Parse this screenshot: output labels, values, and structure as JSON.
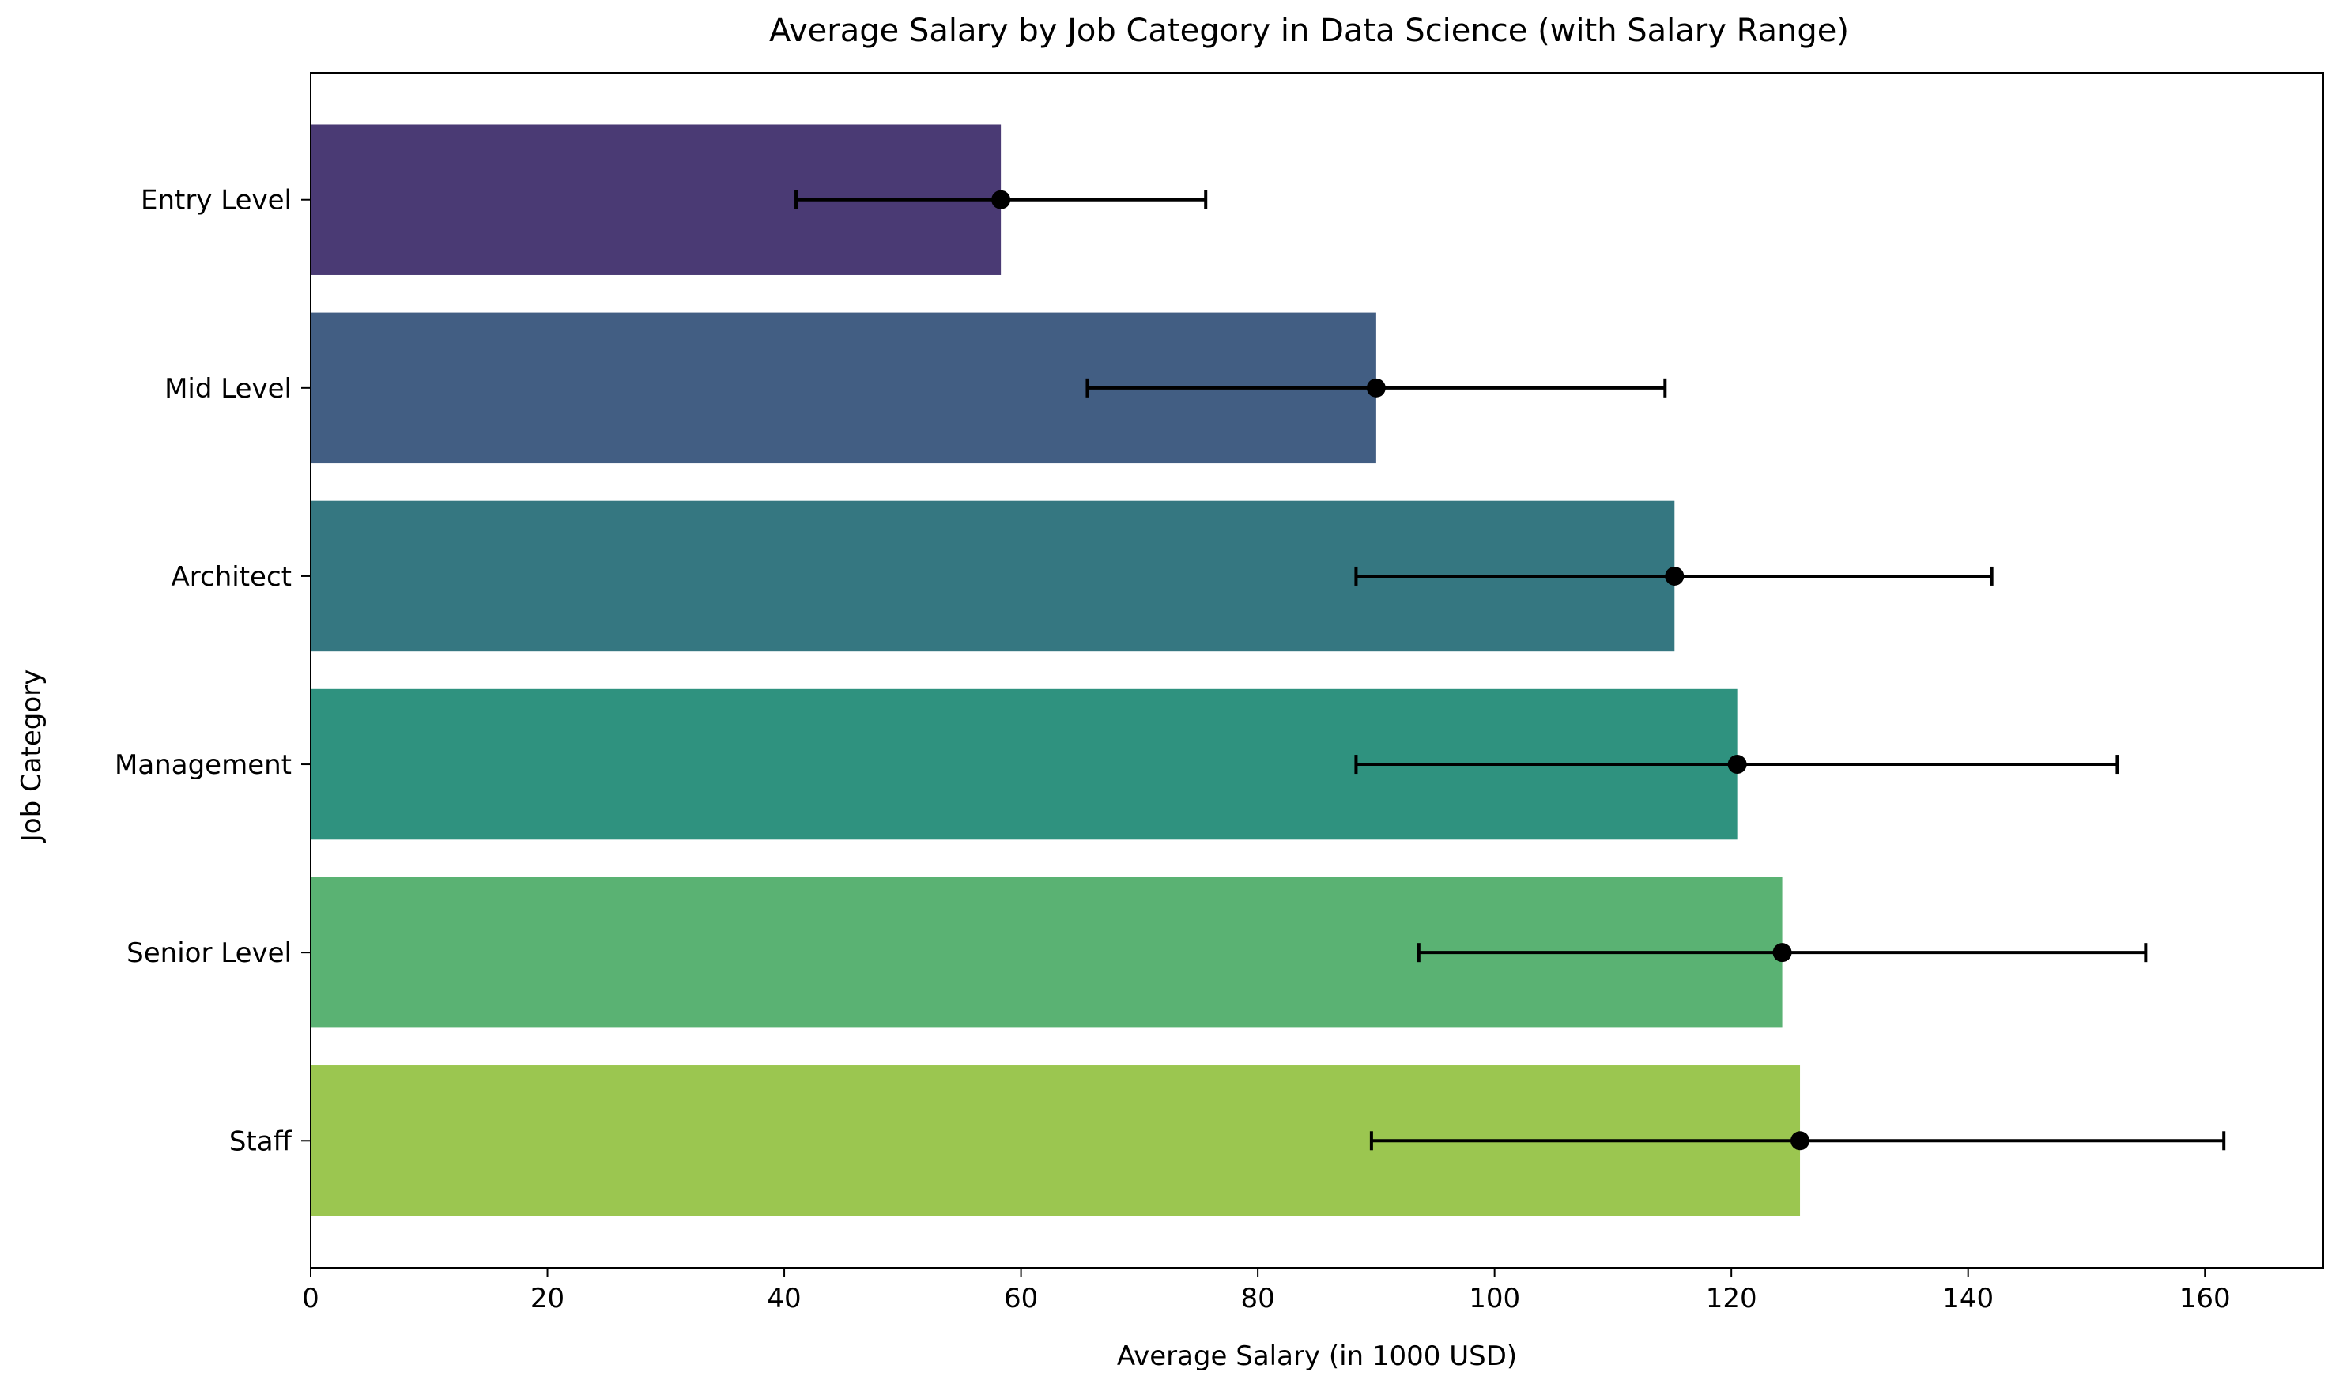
{
  "chart_data": {
    "type": "bar",
    "orientation": "horizontal",
    "title": "Average Salary by Job Category in Data Science (with Salary Range)",
    "xlabel": "Average Salary (in 1000 USD)",
    "ylabel": "Job Category",
    "xlim": [
      0,
      170
    ],
    "x_ticks": [
      0,
      20,
      40,
      60,
      80,
      100,
      120,
      140,
      160
    ],
    "grid": false,
    "legend": "none",
    "categories": [
      "Entry Level",
      "Mid Level",
      "Architect",
      "Management",
      "Senior Level",
      "Staff"
    ],
    "values": [
      58.3,
      90.0,
      115.2,
      120.5,
      124.3,
      125.8
    ],
    "error_low": [
      41.0,
      65.6,
      88.3,
      88.3,
      93.6,
      89.6
    ],
    "error_high": [
      75.6,
      114.4,
      142.0,
      152.6,
      155.0,
      161.6
    ],
    "colors": [
      "#4a3a74",
      "#425e83",
      "#357781",
      "#2f927f",
      "#5ab273",
      "#9bc650"
    ],
    "error_color": "#000000"
  }
}
